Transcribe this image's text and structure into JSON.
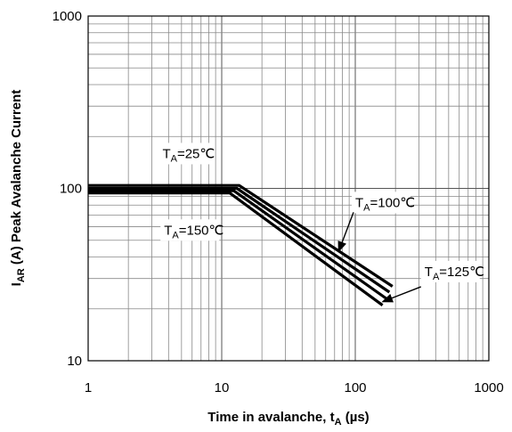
{
  "chart_data": {
    "type": "line",
    "x_scale": "log",
    "y_scale": "log",
    "xlim": [
      1,
      1000
    ],
    "ylim": [
      10,
      1000
    ],
    "xlabel": {
      "main": "Time in avalanche, t",
      "sub": "A",
      "unit": " (µs)"
    },
    "ylabel": {
      "prefix": "I",
      "sub": "AR",
      "main": " (A) Peak Avalanche Current"
    },
    "x_ticks": [
      {
        "value": 1,
        "label": "1"
      },
      {
        "value": 10,
        "label": "10"
      },
      {
        "value": 100,
        "label": "100"
      },
      {
        "value": 1000,
        "label": "1000"
      }
    ],
    "y_ticks": [
      {
        "value": 10,
        "label": "10"
      },
      {
        "value": 100,
        "label": "100"
      },
      {
        "value": 1000,
        "label": "1000"
      }
    ],
    "grid": true,
    "series": [
      {
        "id": "ta25",
        "name": "T_A=25℃",
        "points": [
          [
            1,
            104
          ],
          [
            13.5,
            104
          ],
          [
            190,
            27
          ]
        ]
      },
      {
        "id": "ta100",
        "name": "T_A=100℃",
        "points": [
          [
            1,
            100
          ],
          [
            13,
            100
          ],
          [
            180,
            25
          ]
        ]
      },
      {
        "id": "ta125",
        "name": "T_A=125℃",
        "points": [
          [
            1,
            97
          ],
          [
            12.3,
            97
          ],
          [
            170,
            23
          ]
        ]
      },
      {
        "id": "ta150",
        "name": "T_A=150℃",
        "points": [
          [
            1,
            94
          ],
          [
            11.5,
            94
          ],
          [
            160,
            21
          ]
        ]
      }
    ],
    "annotations": [
      {
        "series": "ta25",
        "prefix": "T",
        "sub": "A",
        "text": "=25℃",
        "label_at": [
          3.6,
          150
        ],
        "anchor": "start"
      },
      {
        "series": "ta100",
        "prefix": "T",
        "sub": "A",
        "text": "=100℃",
        "label_at": [
          100,
          78
        ],
        "anchor": "start",
        "arrow_to": [
          75,
          43
        ]
      },
      {
        "series": "ta150",
        "prefix": "T",
        "sub": "A",
        "text": "=150℃",
        "label_at": [
          3.7,
          54
        ],
        "anchor": "start"
      },
      {
        "series": "ta125",
        "prefix": "T",
        "sub": "A",
        "text": "=125℃",
        "label_at": [
          330,
          31
        ],
        "anchor": "start",
        "arrow_to": [
          160,
          22
        ]
      }
    ]
  }
}
